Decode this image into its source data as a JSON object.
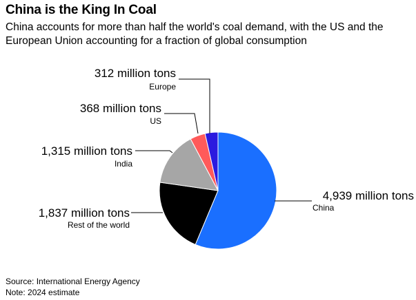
{
  "header": {
    "title": "China is the King In Coal",
    "subtitle": "China accounts for more than half the world's coal demand, with the US and the European Union accounting for a fraction of global consumption"
  },
  "chart_data": {
    "type": "pie",
    "title": "China is the King In Coal",
    "subtitle": "China accounts for more than half the world's coal demand, with the US and the European Union accounting for a fraction of global consumption",
    "unit": "million tons",
    "slices": [
      {
        "key": "china",
        "label": "China",
        "value": 4939,
        "value_label": "4,939 million tons",
        "color": "#1a6fff"
      },
      {
        "key": "rest_of_world",
        "label": "Rest of the world",
        "value": 1837,
        "value_label": "1,837 million tons",
        "color": "#000000"
      },
      {
        "key": "india",
        "label": "India",
        "value": 1315,
        "value_label": "1,315 million tons",
        "color": "#a6a6a6"
      },
      {
        "key": "us",
        "label": "US",
        "value": 368,
        "value_label": "368 million tons",
        "color": "#ff5a5a"
      },
      {
        "key": "europe",
        "label": "Europe",
        "value": 312,
        "value_label": "312 million tons",
        "color": "#2b1adf"
      }
    ]
  },
  "footer": {
    "source": "Source: International Energy Agency",
    "note": "Note: 2024 estimate"
  }
}
